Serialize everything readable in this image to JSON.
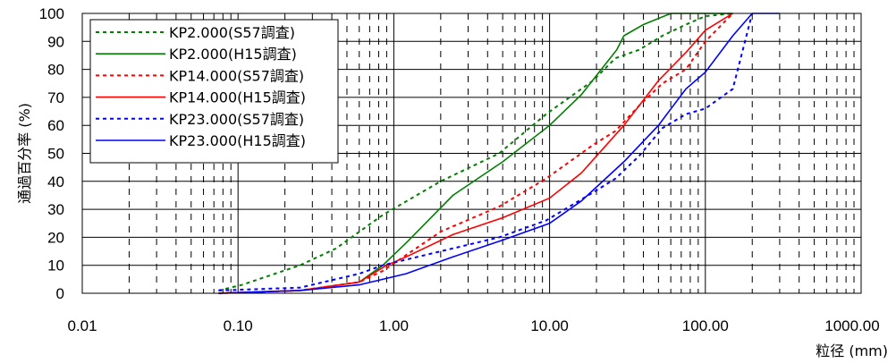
{
  "chart_data": {
    "type": "line",
    "xscale": "log",
    "xlim": [
      0.01,
      1000
    ],
    "ylim": [
      0,
      100
    ],
    "xlabel": "粒径 (mm)",
    "ylabel": "通過百分率 (%)",
    "x_tick_labels": [
      "0.01",
      "0.10",
      "1.00",
      "10.00",
      "100.00",
      "1000.00"
    ],
    "y_tick_labels": [
      "0",
      "10",
      "20",
      "30",
      "40",
      "50",
      "60",
      "70",
      "80",
      "90",
      "100"
    ],
    "grid": "major solid, minor dashed on x",
    "legend_position": "top-left",
    "series": [
      {
        "name": "KP2.000(S57調査)",
        "color": "#008000",
        "dash": "dashed",
        "x": [
          0.075,
          0.106,
          0.25,
          0.425,
          0.85,
          2.0,
          4.75,
          9.5,
          19,
          26.5,
          37.5,
          53,
          75,
          100,
          150
        ],
        "y": [
          1,
          3,
          10,
          16,
          28,
          40,
          50,
          64,
          76,
          84,
          87,
          92,
          96,
          99,
          100
        ]
      },
      {
        "name": "KP2.000(H15調査)",
        "color": "#008000",
        "dash": "solid",
        "x": [
          0.075,
          0.25,
          0.6,
          0.85,
          1.2,
          2.4,
          5.0,
          10,
          16,
          27,
          30,
          40,
          60,
          100,
          150
        ],
        "y": [
          0,
          1,
          4,
          10,
          18,
          35,
          47,
          60,
          71,
          87,
          92,
          96,
          100,
          100,
          100
        ]
      },
      {
        "name": "KP14.000(S57調査)",
        "color": "#ff0000",
        "dash": "dashed",
        "x": [
          0.075,
          0.25,
          0.6,
          0.85,
          2.0,
          4.75,
          9.5,
          19,
          26.5,
          37.5,
          53,
          75,
          100,
          150
        ],
        "y": [
          0,
          1,
          4,
          8,
          22,
          31,
          41,
          53,
          58,
          67,
          75,
          80,
          90,
          100
        ]
      },
      {
        "name": "KP14.000(H15調査)",
        "color": "#ff0000",
        "dash": "solid",
        "x": [
          0.075,
          0.25,
          0.6,
          0.9,
          1.2,
          2.4,
          5.0,
          10,
          16,
          30,
          50,
          75,
          100,
          150
        ],
        "y": [
          0,
          1,
          4,
          10,
          13,
          21,
          27,
          34,
          43,
          60,
          76,
          86,
          94,
          100
        ]
      },
      {
        "name": "KP23.000(S57調査)",
        "color": "#0000ff",
        "dash": "dashed",
        "x": [
          0.075,
          0.25,
          0.6,
          0.85,
          2.0,
          4.75,
          9.5,
          19,
          26.5,
          37.5,
          53,
          75,
          100,
          150,
          200
        ],
        "y": [
          1,
          2,
          7,
          10,
          15,
          20,
          26,
          36,
          41,
          49,
          59,
          64,
          66,
          73,
          100
        ]
      },
      {
        "name": "KP23.000(H15調査)",
        "color": "#0000ff",
        "dash": "solid",
        "x": [
          0.075,
          0.25,
          0.6,
          1.2,
          2.4,
          5.0,
          10,
          16,
          30,
          50,
          75,
          100,
          150,
          200,
          300
        ],
        "y": [
          0,
          1,
          3,
          7,
          13,
          19,
          25,
          33,
          47,
          60,
          73,
          79,
          92,
          100,
          100
        ]
      }
    ]
  }
}
